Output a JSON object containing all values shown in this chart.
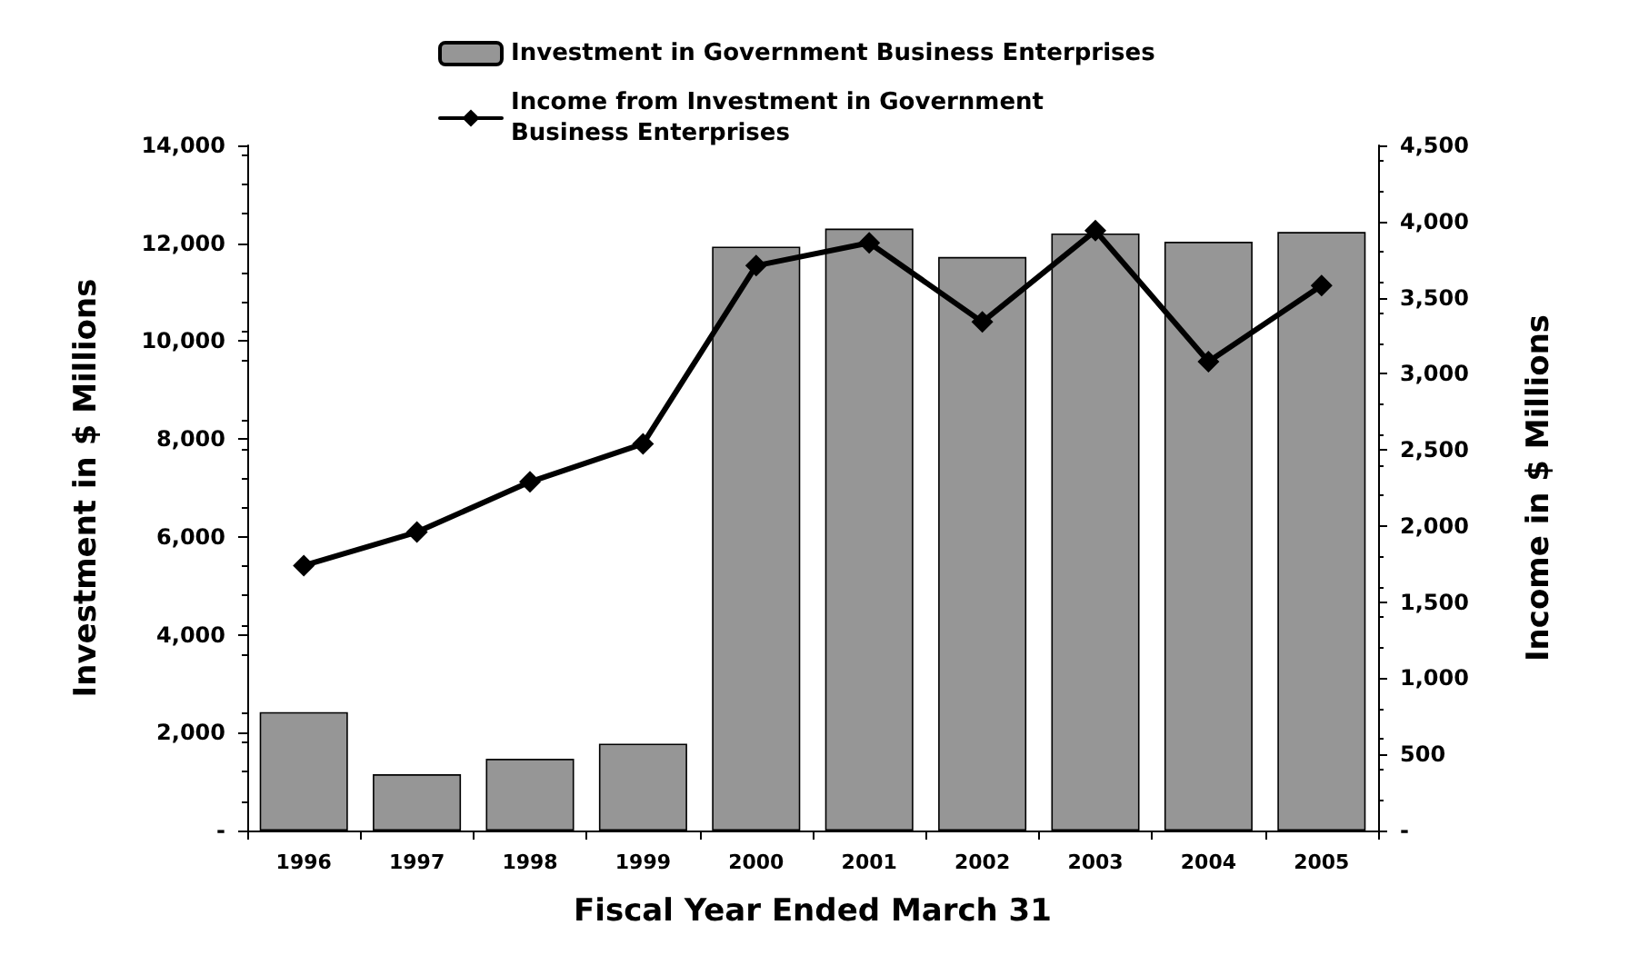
{
  "chart_data": {
    "type": "bar",
    "xlabel": "Fiscal Year Ended March 31",
    "ylabel": "Investment in $ Millions",
    "y2label": "Income in $ Millions",
    "categories": [
      "1996",
      "1997",
      "1998",
      "1999",
      "2000",
      "2001",
      "2002",
      "2003",
      "2004",
      "2005"
    ],
    "series": [
      {
        "name": "Investment in Government Business Enterprises",
        "color": "#969696",
        "values": [
          2420,
          1150,
          1465,
          1775,
          11930,
          12300,
          11720,
          12200,
          12030,
          12230
        ]
      },
      {
        "name": "Income from Investment in Government Business Enterprises",
        "type": "line",
        "axis": "y2",
        "color": "#000000",
        "marker": "diamond",
        "line_style": "solid",
        "values": [
          1740,
          1960,
          2290,
          2540,
          3710,
          3860,
          3340,
          3940,
          3080,
          3580
        ]
      }
    ],
    "ylim": [
      0,
      14000
    ],
    "yticks": [
      {
        "value": 0,
        "label": "-"
      },
      {
        "value": 2000,
        "label": "2,000"
      },
      {
        "value": 4000,
        "label": "4,000"
      },
      {
        "value": 6000,
        "label": "6,000"
      },
      {
        "value": 8000,
        "label": "8,000"
      },
      {
        "value": 10000,
        "label": "10,000"
      },
      {
        "value": 12000,
        "label": "12,000"
      },
      {
        "value": 14000,
        "label": "14,000"
      }
    ],
    "y2lim": [
      0,
      4500
    ],
    "y2ticks": [
      {
        "value": 0,
        "label": "-"
      },
      {
        "value": 500,
        "label": "500"
      },
      {
        "value": 1000,
        "label": "1,000"
      },
      {
        "value": 1500,
        "label": "1,500"
      },
      {
        "value": 2000,
        "label": "2,000"
      },
      {
        "value": 2500,
        "label": "2,500"
      },
      {
        "value": 3000,
        "label": "3,000"
      },
      {
        "value": 3500,
        "label": "3,500"
      },
      {
        "value": 4000,
        "label": "4,000"
      },
      {
        "value": 4500,
        "label": "4,500"
      }
    ],
    "grid": false,
    "legend": "top"
  }
}
